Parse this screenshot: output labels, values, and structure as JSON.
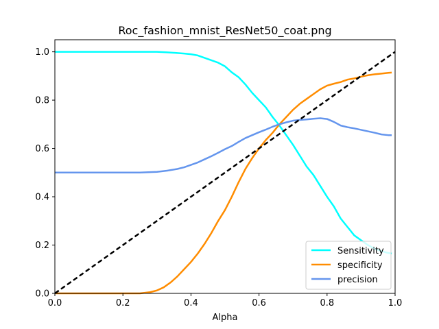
{
  "chart_data": {
    "type": "line",
    "title": "Roc_fashion_mnist_ResNet50_coat.png",
    "xlabel": "Alpha",
    "ylabel": "",
    "xlim": [
      0,
      1
    ],
    "ylim": [
      0,
      1.05
    ],
    "xticks": [
      "0.0",
      "0.2",
      "0.4",
      "0.6",
      "0.8",
      "1.0"
    ],
    "yticks": [
      "0.0",
      "0.2",
      "0.4",
      "0.6",
      "0.8",
      "1.0"
    ],
    "grid": false,
    "legend_position": "lower-right",
    "series": [
      {
        "name": "Sensitivity",
        "color": "#00ffff",
        "style": "solid",
        "x": [
          0.0,
          0.05,
          0.1,
          0.15,
          0.2,
          0.25,
          0.3,
          0.33,
          0.36,
          0.38,
          0.4,
          0.42,
          0.44,
          0.46,
          0.48,
          0.5,
          0.52,
          0.54,
          0.56,
          0.58,
          0.6,
          0.62,
          0.64,
          0.66,
          0.68,
          0.7,
          0.72,
          0.74,
          0.76,
          0.78,
          0.8,
          0.82,
          0.84,
          0.86,
          0.88,
          0.9,
          0.92,
          0.94,
          0.96,
          0.98,
          0.99
        ],
        "values": [
          1.0,
          1.0,
          1.0,
          1.0,
          1.0,
          1.0,
          1.0,
          0.998,
          0.995,
          0.993,
          0.99,
          0.985,
          0.975,
          0.965,
          0.955,
          0.94,
          0.915,
          0.895,
          0.865,
          0.83,
          0.8,
          0.77,
          0.73,
          0.695,
          0.655,
          0.615,
          0.57,
          0.525,
          0.49,
          0.445,
          0.4,
          0.36,
          0.31,
          0.275,
          0.24,
          0.22,
          0.2,
          0.185,
          0.175,
          0.167,
          0.165
        ]
      },
      {
        "name": "specificity",
        "color": "#ff8c00",
        "style": "solid",
        "x": [
          0.0,
          0.05,
          0.1,
          0.15,
          0.2,
          0.25,
          0.28,
          0.3,
          0.32,
          0.34,
          0.36,
          0.38,
          0.4,
          0.42,
          0.44,
          0.46,
          0.48,
          0.5,
          0.52,
          0.54,
          0.56,
          0.58,
          0.6,
          0.62,
          0.64,
          0.66,
          0.68,
          0.7,
          0.72,
          0.74,
          0.76,
          0.78,
          0.8,
          0.82,
          0.84,
          0.86,
          0.88,
          0.9,
          0.92,
          0.94,
          0.96,
          0.98,
          0.99
        ],
        "values": [
          0.0,
          0.0,
          0.0,
          0.0,
          0.0,
          0.0,
          0.005,
          0.012,
          0.025,
          0.045,
          0.07,
          0.1,
          0.13,
          0.165,
          0.205,
          0.25,
          0.3,
          0.345,
          0.4,
          0.46,
          0.515,
          0.56,
          0.6,
          0.635,
          0.665,
          0.7,
          0.73,
          0.76,
          0.785,
          0.805,
          0.825,
          0.845,
          0.86,
          0.868,
          0.875,
          0.885,
          0.89,
          0.897,
          0.903,
          0.907,
          0.91,
          0.913,
          0.914
        ]
      },
      {
        "name": "precision",
        "color": "#6495ed",
        "style": "solid",
        "x": [
          0.0,
          0.05,
          0.1,
          0.15,
          0.2,
          0.25,
          0.3,
          0.33,
          0.36,
          0.38,
          0.4,
          0.42,
          0.44,
          0.46,
          0.48,
          0.5,
          0.52,
          0.54,
          0.56,
          0.58,
          0.6,
          0.62,
          0.64,
          0.66,
          0.68,
          0.7,
          0.72,
          0.74,
          0.76,
          0.78,
          0.8,
          0.82,
          0.84,
          0.86,
          0.88,
          0.9,
          0.92,
          0.94,
          0.96,
          0.98,
          0.99
        ],
        "values": [
          0.5,
          0.5,
          0.5,
          0.5,
          0.5,
          0.5,
          0.503,
          0.508,
          0.515,
          0.522,
          0.532,
          0.542,
          0.555,
          0.568,
          0.582,
          0.597,
          0.61,
          0.627,
          0.643,
          0.655,
          0.667,
          0.678,
          0.69,
          0.7,
          0.708,
          0.715,
          0.718,
          0.72,
          0.723,
          0.725,
          0.722,
          0.71,
          0.695,
          0.688,
          0.683,
          0.677,
          0.671,
          0.665,
          0.658,
          0.655,
          0.655
        ]
      },
      {
        "name": "",
        "color": "#000000",
        "style": "dashed",
        "x": [
          0.0,
          1.0
        ],
        "values": [
          0.0,
          1.0
        ]
      }
    ]
  }
}
